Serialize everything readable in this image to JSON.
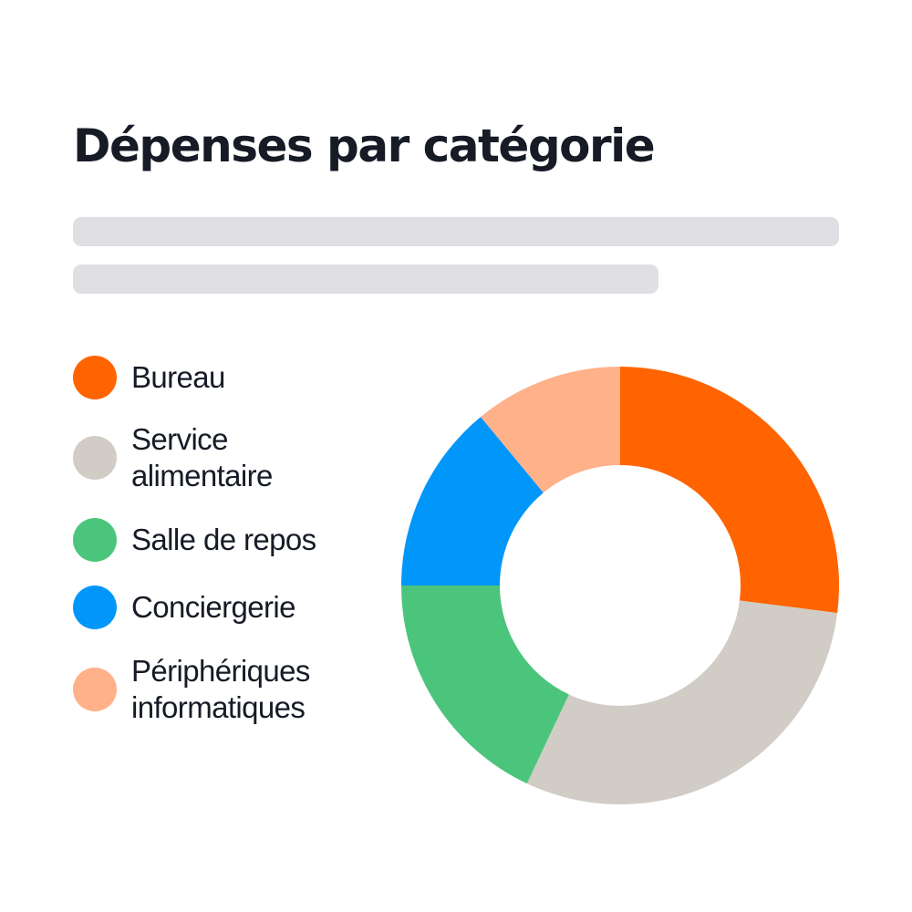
{
  "chart_data": {
    "type": "pie",
    "title": "Dépenses par catégorie",
    "hole": 0.55,
    "categories": [
      "Bureau",
      "Service alimentaire",
      "Salle de repos",
      "Conciergerie",
      "Périphériques informatiques"
    ],
    "values": [
      27,
      30,
      18,
      14,
      11
    ],
    "colors": [
      "#ff6400",
      "#d1ccc5",
      "#4cc57c",
      "#0196f9",
      "#ffb18a"
    ],
    "legend_position": "left",
    "legend": [
      {
        "label_lines": [
          "Bureau"
        ],
        "color": "#ff6400"
      },
      {
        "label_lines": [
          "Service",
          "alimentaire"
        ],
        "color": "#d1ccc5"
      },
      {
        "label_lines": [
          "Salle de repos"
        ],
        "color": "#4cc57c"
      },
      {
        "label_lines": [
          "Conciergerie"
        ],
        "color": "#0196f9"
      },
      {
        "label_lines": [
          "Périphériques",
          "informatiques"
        ],
        "color": "#ffb18a"
      }
    ]
  }
}
